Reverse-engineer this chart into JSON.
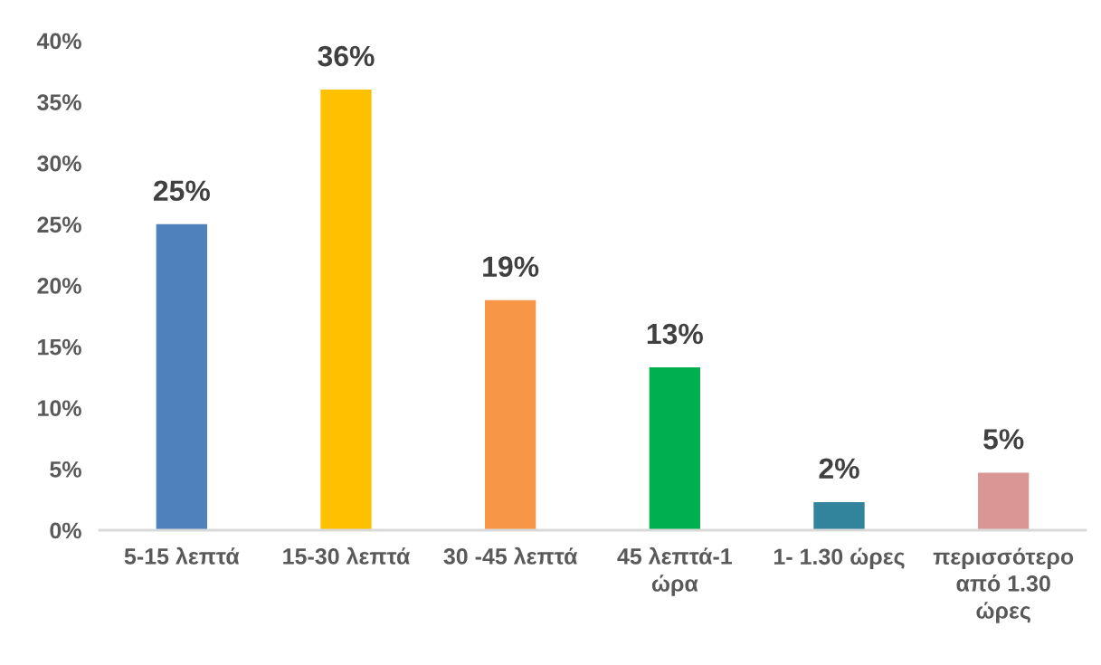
{
  "chart_data": {
    "type": "bar",
    "categories": [
      "5-15 λεπτά",
      "15-30 λεπτά",
      "30 -45 λεπτά",
      "45 λεπτά-1\nώρα",
      "1- 1.30 ώρες",
      "περισσότερο\nαπό 1.30\nώρες"
    ],
    "values": [
      25,
      36,
      18.8,
      13.3,
      2.3,
      4.7
    ],
    "colors": [
      "#4f81bd",
      "#ffc000",
      "#f79646",
      "#00b050",
      "#31849b",
      "#d99694"
    ],
    "value_labels": [
      "25%",
      "36%",
      "19%",
      "13%",
      "2%",
      "5%"
    ],
    "ylim": [
      0,
      40
    ],
    "yticks": [
      {
        "value": 0,
        "label": "0%"
      },
      {
        "value": 5,
        "label": "5%"
      },
      {
        "value": 10,
        "label": "10%"
      },
      {
        "value": 15,
        "label": "15%"
      },
      {
        "value": 20,
        "label": "20%"
      },
      {
        "value": 25,
        "label": "25%"
      },
      {
        "value": 30,
        "label": "30%"
      },
      {
        "value": 35,
        "label": "35%"
      },
      {
        "value": 40,
        "label": "40%"
      }
    ],
    "grid": false
  }
}
